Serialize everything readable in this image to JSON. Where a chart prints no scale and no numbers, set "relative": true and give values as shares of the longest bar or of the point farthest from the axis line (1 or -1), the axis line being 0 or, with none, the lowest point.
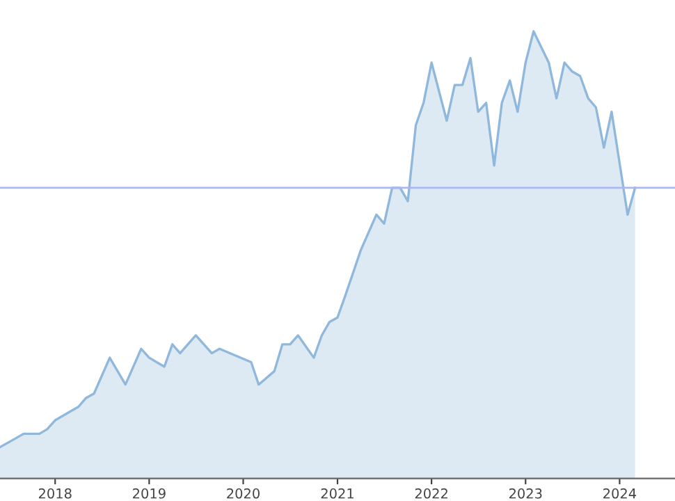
{
  "chart_data": {
    "type": "area",
    "relative": true,
    "grid": false,
    "x": [
      "2017-06",
      "2017-09",
      "2017-11",
      "2017-12",
      "2018-01",
      "2018-03",
      "2018-04",
      "2018-05",
      "2018-06",
      "2018-08",
      "2018-10",
      "2018-12",
      "2019-01",
      "2019-03",
      "2019-04",
      "2019-05",
      "2019-07",
      "2019-09",
      "2019-10",
      "2020-02",
      "2020-03",
      "2020-05",
      "2020-06",
      "2020-07",
      "2020-08",
      "2020-10",
      "2020-11",
      "2020-12",
      "2021-01",
      "2021-02",
      "2021-04",
      "2021-06",
      "2021-07",
      "2021-08",
      "2021-09",
      "2021-10",
      "2021-11",
      "2021-12",
      "2022-01",
      "2022-03",
      "2022-04",
      "2022-05",
      "2022-06",
      "2022-07",
      "2022-08",
      "2022-09",
      "2022-10",
      "2022-11",
      "2022-12",
      "2023-01",
      "2023-02",
      "2023-04",
      "2023-05",
      "2023-06",
      "2023-07",
      "2023-08",
      "2023-09",
      "2023-10",
      "2023-11",
      "2023-12",
      "2024-02",
      "2024-03"
    ],
    "series": [
      {
        "color": "#8fb8dc",
        "values": [
          0.07,
          0.1,
          0.1,
          0.11,
          0.13,
          0.15,
          0.16,
          0.18,
          0.19,
          0.27,
          0.21,
          0.29,
          0.27,
          0.25,
          0.3,
          0.28,
          0.32,
          0.28,
          0.29,
          0.26,
          0.21,
          0.24,
          0.3,
          0.3,
          0.32,
          0.27,
          0.32,
          0.35,
          0.36,
          0.41,
          0.51,
          0.59,
          0.57,
          0.65,
          0.65,
          0.62,
          0.79,
          0.84,
          0.93,
          0.8,
          0.88,
          0.88,
          0.94,
          0.82,
          0.84,
          0.7,
          0.84,
          0.89,
          0.82,
          0.93,
          1.0,
          0.93,
          0.85,
          0.93,
          0.91,
          0.9,
          0.85,
          0.83,
          0.74,
          0.82,
          0.59,
          0.65
        ]
      }
    ],
    "xlim": [
      "2017-06-01",
      "2024-08-03"
    ],
    "xticks": [
      "2018",
      "2019",
      "2020",
      "2021",
      "2022",
      "2023",
      "2024"
    ],
    "ref_lines": [
      {
        "axis": "y",
        "value": 0.65,
        "color": "#aab8f2"
      }
    ]
  }
}
